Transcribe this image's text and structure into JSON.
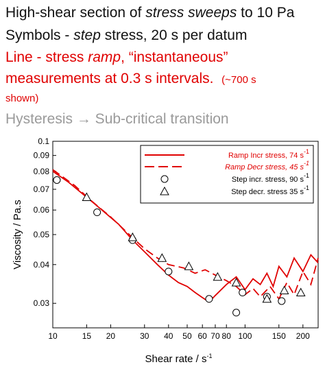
{
  "header": {
    "line1_a": "High-shear section of ",
    "line1_b": "stress sweeps",
    "line1_c": " to 10 Pa",
    "line2_a": "Symbols - ",
    "line2_b": "step",
    "line2_c": " stress, 20 s per datum",
    "line3_a": "Line - stress ",
    "line3_b": "ramp",
    "line3_c": ", “instantaneous”",
    "line4_a": "measurements at 0.3 s intervals.",
    "line4_b": "(~700 s",
    "line5": "shown)",
    "line6": "Hysteresis → Sub-critical transition"
  },
  "chart_data": {
    "type": "scatter",
    "xlabel": "Shear rate / s",
    "xlabel_sup": "-1",
    "ylabel": "Viscosity / Pa.s",
    "xscale": "log",
    "yscale": "log",
    "xlim": [
      10,
      240
    ],
    "ylim": [
      0.025,
      0.1
    ],
    "x_ticks": [
      10,
      15,
      20,
      30,
      40,
      50,
      60,
      70,
      80,
      100,
      150,
      200
    ],
    "x_tick_labels": [
      "10",
      "15",
      "20",
      "30",
      "40",
      "50",
      "60",
      "70",
      "80",
      "100",
      "150",
      "200"
    ],
    "y_ticks": [
      0.03,
      0.04,
      0.05,
      0.06,
      0.07,
      0.08,
      0.09,
      0.1
    ],
    "y_tick_labels": [
      "0.03",
      "0.04",
      "0.05",
      "0.06",
      "0.07",
      "0.08",
      "0.09",
      "0.1"
    ],
    "grid": false,
    "legend_position": "top-right",
    "series": [
      {
        "name": "Ramp Incr stress, 74 s",
        "name_sup": "-1",
        "style": "solid-line",
        "color": "#e00000",
        "x": [
          10,
          12,
          15,
          18,
          22,
          26,
          30,
          35,
          40,
          45,
          50,
          55,
          60,
          65,
          70,
          80,
          90,
          100,
          110,
          120,
          130,
          140,
          150,
          165,
          180,
          200,
          220,
          240
        ],
        "y": [
          0.08,
          0.074,
          0.066,
          0.06,
          0.054,
          0.048,
          0.044,
          0.04,
          0.037,
          0.035,
          0.034,
          0.0325,
          0.0313,
          0.0303,
          0.0318,
          0.0345,
          0.0365,
          0.0332,
          0.036,
          0.0345,
          0.0375,
          0.034,
          0.0395,
          0.0365,
          0.042,
          0.038,
          0.043,
          0.0405
        ]
      },
      {
        "name": "Ramp Decr stress, 45 s",
        "name_sup": "-1",
        "style": "dashed-line",
        "color": "#e00000",
        "x": [
          10,
          13,
          16,
          20,
          25,
          30,
          35,
          40,
          48,
          55,
          62,
          70,
          80,
          90,
          100,
          110,
          120,
          135,
          150,
          165,
          180,
          200,
          220,
          240
        ],
        "y": [
          0.081,
          0.072,
          0.064,
          0.057,
          0.05,
          0.045,
          0.042,
          0.04,
          0.039,
          0.0375,
          0.0385,
          0.037,
          0.0355,
          0.034,
          0.032,
          0.0335,
          0.0315,
          0.034,
          0.031,
          0.035,
          0.032,
          0.038,
          0.0345,
          0.042
        ]
      },
      {
        "name": "Step incr. stress, 90 s",
        "name_sup": "-1",
        "style": "circle",
        "color": "#000000",
        "x": [
          10.5,
          17,
          26,
          40,
          65,
          90,
          97,
          130,
          155
        ],
        "y": [
          0.075,
          0.059,
          0.048,
          0.038,
          0.031,
          0.028,
          0.0325,
          0.0315,
          0.0305
        ]
      },
      {
        "name": "Step decr. stress 35 s",
        "name_sup": "-1",
        "style": "triangle",
        "color": "#000000",
        "x": [
          15,
          26,
          37,
          51,
          72,
          90,
          130,
          160,
          195
        ],
        "y": [
          0.066,
          0.049,
          0.042,
          0.0395,
          0.0365,
          0.035,
          0.031,
          0.033,
          0.0325
        ]
      }
    ]
  }
}
